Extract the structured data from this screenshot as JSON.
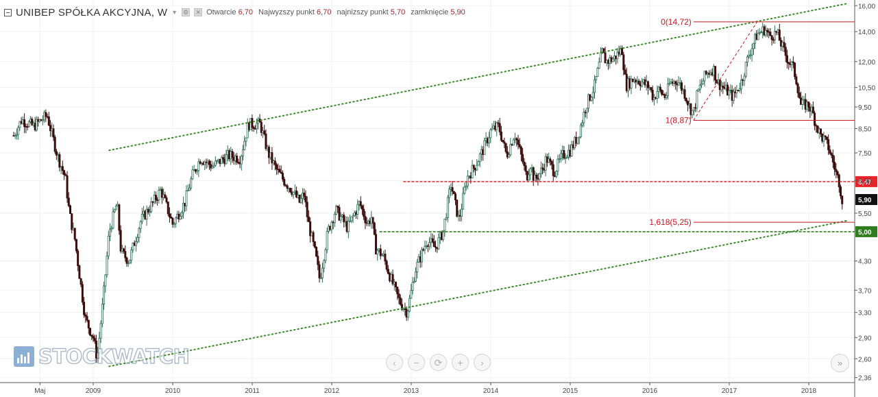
{
  "header": {
    "symbol": "UNIBEP SPÓŁKA AKCYJNA, W",
    "open_label": "Otwarcie",
    "open_value": "6,70",
    "high_label": "Najwyzszy punkt",
    "high_value": "6,70",
    "low_label": "najnizszy punkt",
    "low_value": "5,70",
    "close_label": "zamknięcie",
    "close_value": "5,90"
  },
  "watermark": "STOCKWATCH",
  "nav_buttons": [
    "‹",
    "−",
    "⟳",
    "+",
    "›"
  ],
  "nav_right": "»",
  "colors": {
    "up_candle": "#2e6e55",
    "down_candle": "#3a0d0d",
    "trend_green": "#3a8a2a",
    "support_line": "#2e7d1f",
    "resistance_line": "#e8232a",
    "fib_line": "#c8171d",
    "last_price_badge": "#111111"
  },
  "chart_data": {
    "type": "candlestick",
    "title": "UNIBEP SPÓŁKA AKCYJNA, W",
    "y_scale": "log",
    "ylim": [
      2.3,
      16.3
    ],
    "y_ticks": [
      "16,00",
      "14,00",
      "12,00",
      "10,50",
      "9,50",
      "8,50",
      "7,50",
      "6,50",
      "5,50",
      "4,30",
      "3,70",
      "3,30",
      "2,90",
      "2,60",
      "2,36"
    ],
    "y_tick_values": [
      16.0,
      14.0,
      12.0,
      10.5,
      9.5,
      8.5,
      7.5,
      6.5,
      5.5,
      4.3,
      3.7,
      3.3,
      2.9,
      2.6,
      2.36
    ],
    "x_ticks": [
      "Maj",
      "2009",
      "2010",
      "2011",
      "2012",
      "2013",
      "2014",
      "2015",
      "2016",
      "2017",
      "2018"
    ],
    "x_tick_dates": [
      2008.33,
      2009.0,
      2010.0,
      2011.0,
      2012.0,
      2013.0,
      2014.0,
      2015.0,
      2016.0,
      2017.0,
      2018.0
    ],
    "x_range": [
      2008.0,
      2018.5
    ],
    "price_path": [
      [
        2008.0,
        8.2
      ],
      [
        2008.1,
        8.9
      ],
      [
        2008.25,
        8.6
      ],
      [
        2008.42,
        9.1
      ],
      [
        2008.55,
        7.4
      ],
      [
        2008.65,
        6.6
      ],
      [
        2008.7,
        5.5
      ],
      [
        2008.77,
        4.8
      ],
      [
        2008.82,
        4.1
      ],
      [
        2008.9,
        3.2
      ],
      [
        2009.0,
        2.9
      ],
      [
        2009.05,
        2.6
      ],
      [
        2009.13,
        3.6
      ],
      [
        2009.2,
        5.0
      ],
      [
        2009.3,
        5.8
      ],
      [
        2009.35,
        4.5
      ],
      [
        2009.45,
        4.3
      ],
      [
        2009.6,
        5.3
      ],
      [
        2009.75,
        5.8
      ],
      [
        2009.85,
        6.2
      ],
      [
        2010.0,
        5.2
      ],
      [
        2010.15,
        5.8
      ],
      [
        2010.25,
        6.7
      ],
      [
        2010.35,
        7.3
      ],
      [
        2010.5,
        7.0
      ],
      [
        2010.7,
        7.4
      ],
      [
        2010.85,
        7.3
      ],
      [
        2010.95,
        8.7
      ],
      [
        2011.1,
        8.7
      ],
      [
        2011.2,
        7.5
      ],
      [
        2011.3,
        6.9
      ],
      [
        2011.4,
        6.5
      ],
      [
        2011.5,
        6.2
      ],
      [
        2011.6,
        5.8
      ],
      [
        2011.65,
        6.1
      ],
      [
        2011.7,
        5.3
      ],
      [
        2011.8,
        4.4
      ],
      [
        2011.85,
        3.9
      ],
      [
        2011.95,
        5.0
      ],
      [
        2012.05,
        5.6
      ],
      [
        2012.2,
        5.1
      ],
      [
        2012.35,
        5.8
      ],
      [
        2012.45,
        5.2
      ],
      [
        2012.5,
        5.4
      ],
      [
        2012.55,
        4.6
      ],
      [
        2012.65,
        4.4
      ],
      [
        2012.75,
        3.9
      ],
      [
        2012.85,
        3.5
      ],
      [
        2012.95,
        3.3
      ],
      [
        2013.05,
        4.1
      ],
      [
        2013.2,
        4.8
      ],
      [
        2013.3,
        4.6
      ],
      [
        2013.4,
        5.0
      ],
      [
        2013.5,
        6.4
      ],
      [
        2013.55,
        5.8
      ],
      [
        2013.6,
        5.3
      ],
      [
        2013.7,
        6.6
      ],
      [
        2013.8,
        7.0
      ],
      [
        2013.9,
        7.6
      ],
      [
        2014.0,
        8.4
      ],
      [
        2014.1,
        8.6
      ],
      [
        2014.2,
        7.4
      ],
      [
        2014.3,
        8.3
      ],
      [
        2014.4,
        7.2
      ],
      [
        2014.45,
        6.6
      ],
      [
        2014.5,
        7.1
      ],
      [
        2014.55,
        6.5
      ],
      [
        2014.65,
        6.9
      ],
      [
        2014.7,
        7.3
      ],
      [
        2014.8,
        6.8
      ],
      [
        2014.9,
        7.4
      ],
      [
        2015.0,
        7.6
      ],
      [
        2015.1,
        8.2
      ],
      [
        2015.2,
        9.6
      ],
      [
        2015.3,
        10.5
      ],
      [
        2015.4,
        12.6
      ],
      [
        2015.45,
        12.0
      ],
      [
        2015.55,
        12.2
      ],
      [
        2015.65,
        12.8
      ],
      [
        2015.7,
        10.6
      ],
      [
        2015.8,
        11.0
      ],
      [
        2015.9,
        10.8
      ],
      [
        2016.0,
        10.5
      ],
      [
        2016.05,
        9.9
      ],
      [
        2016.1,
        10.4
      ],
      [
        2016.2,
        10.0
      ],
      [
        2016.25,
        10.7
      ],
      [
        2016.35,
        10.9
      ],
      [
        2016.45,
        10.1
      ],
      [
        2016.5,
        9.5
      ],
      [
        2016.55,
        9.2
      ],
      [
        2016.6,
        10.2
      ],
      [
        2016.7,
        11.2
      ],
      [
        2016.8,
        11.6
      ],
      [
        2016.85,
        10.8
      ],
      [
        2016.9,
        10.6
      ],
      [
        2017.0,
        10.2
      ],
      [
        2017.05,
        10.0
      ],
      [
        2017.15,
        10.8
      ],
      [
        2017.25,
        12.5
      ],
      [
        2017.35,
        13.8
      ],
      [
        2017.45,
        14.2
      ],
      [
        2017.5,
        13.7
      ],
      [
        2017.6,
        13.9
      ],
      [
        2017.7,
        12.5
      ],
      [
        2017.75,
        12.0
      ],
      [
        2017.8,
        11.7
      ],
      [
        2017.85,
        10.8
      ],
      [
        2017.9,
        9.6
      ],
      [
        2018.0,
        9.6
      ],
      [
        2018.05,
        9.2
      ],
      [
        2018.1,
        8.6
      ],
      [
        2018.15,
        8.2
      ],
      [
        2018.2,
        8.0
      ],
      [
        2018.25,
        7.7
      ],
      [
        2018.3,
        7.2
      ],
      [
        2018.35,
        6.7
      ],
      [
        2018.38,
        6.5
      ],
      [
        2018.42,
        5.9
      ]
    ],
    "trend_lines": [
      {
        "name": "upper-trend",
        "from": [
          2009.2,
          7.6
        ],
        "to": [
          2018.5,
          16.2
        ],
        "style": "dotted"
      },
      {
        "name": "lower-trend",
        "from": [
          2009.2,
          2.5
        ],
        "to": [
          2018.5,
          5.3
        ],
        "style": "dotted"
      }
    ],
    "horizontal_levels": [
      {
        "name": "resistance",
        "value": 6.47,
        "label": "6,47",
        "style": "dashed",
        "from_x": 2012.9
      },
      {
        "name": "support",
        "value": 5.0,
        "label": "5,00",
        "style": "dashed",
        "from_x": 2012.6
      }
    ],
    "last_price": {
      "value": 5.9,
      "label": "5,90"
    },
    "fibonacci": {
      "anchor_from": [
        2016.55,
        8.87
      ],
      "anchor_to": [
        2017.35,
        14.72
      ],
      "levels": [
        {
          "value": 14.72,
          "label": "0(14,72)"
        },
        {
          "value": 8.87,
          "label": "1(8,87)"
        },
        {
          "value": 5.25,
          "label": "1,618(5,25)"
        }
      ]
    }
  }
}
